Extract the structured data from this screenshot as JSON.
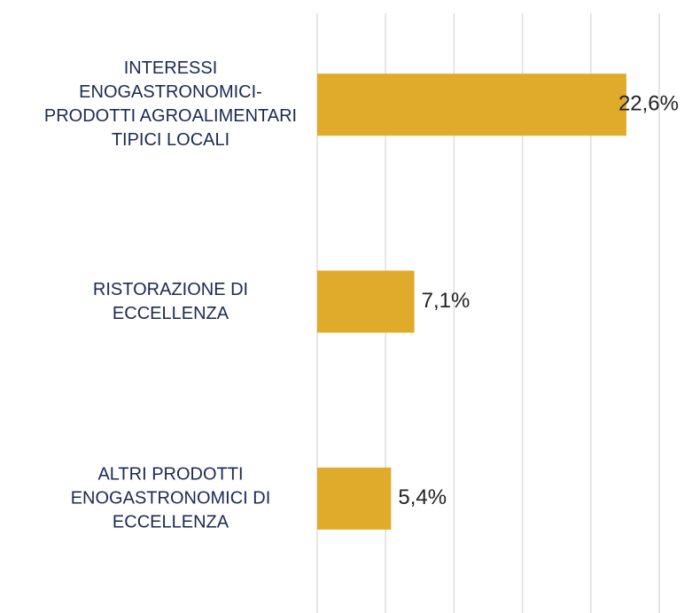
{
  "chart_data": {
    "type": "barh",
    "categories": [
      "INTERESSI ENOGASTRONOMICI-PRODOTTI AGROALIMENTARI TIPICI LOCALI",
      "RISTORAZIONE DI ECCELLENZA",
      "ALTRI PRODOTTI ENOGASTRONOMICI DI ECCELLENZA"
    ],
    "values": [
      22.6,
      7.1,
      5.4
    ],
    "value_labels": [
      "22,6%",
      "7,1%",
      "5,4%"
    ],
    "color": "#e0aa2b",
    "xlim": [
      0,
      25
    ],
    "xticks": [
      0,
      5,
      10,
      15,
      20,
      25
    ],
    "grid": true
  }
}
